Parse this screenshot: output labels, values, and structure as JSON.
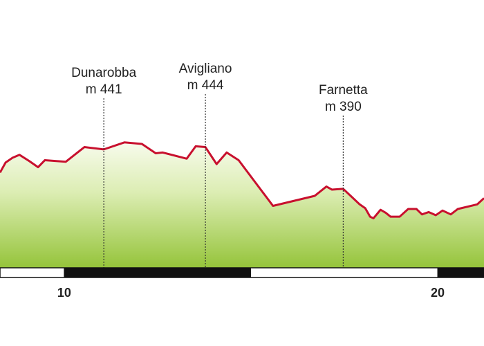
{
  "chart_data": {
    "type": "area",
    "x": [
      8.28,
      8.43,
      8.61,
      8.8,
      9.06,
      9.3,
      9.48,
      10.04,
      10.54,
      11.06,
      11.61,
      12.08,
      12.45,
      12.63,
      13.28,
      13.52,
      13.78,
      14.08,
      14.35,
      14.67,
      15.59,
      16.71,
      17.02,
      17.17,
      17.47,
      17.91,
      18.06,
      18.19,
      18.28,
      18.47,
      18.61,
      18.74,
      18.98,
      19.21,
      19.43,
      19.58,
      19.76,
      19.95,
      20.13,
      20.35,
      20.54,
      21.06,
      21.24
    ],
    "values": [
      411,
      424,
      430,
      434,
      426,
      418,
      427,
      425,
      444,
      441,
      450,
      448,
      436,
      437,
      429,
      445,
      444,
      422,
      437,
      427,
      368,
      381,
      393,
      389,
      390,
      370,
      365,
      354,
      352,
      363,
      359,
      354,
      354,
      364,
      364,
      357,
      360,
      356,
      362,
      357,
      364,
      370,
      378
    ],
    "color": "#c8102e",
    "xlim": [
      8.28,
      21.24
    ],
    "ylim": [
      288,
      634
    ],
    "xticks": [
      10,
      20
    ],
    "annotations": [
      {
        "x": 11.06,
        "label": "Dunarobba",
        "elevation": "m 441"
      },
      {
        "x": 13.78,
        "label": "Avigliano",
        "elevation": "m 444"
      },
      {
        "x": 17.47,
        "label": "Farnetta",
        "elevation": "m 390"
      }
    ]
  }
}
